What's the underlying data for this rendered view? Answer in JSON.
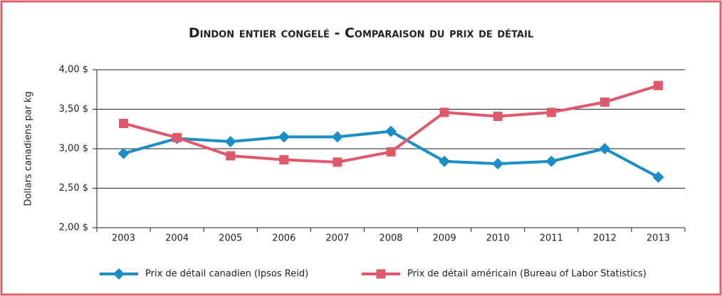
{
  "chart_data": {
    "type": "line",
    "title": "Dindon entier congelé - Comparaison du prix de détail",
    "y_label": "Dollars canadiens par kg",
    "categories": [
      "2003",
      "2004",
      "2005",
      "2006",
      "2007",
      "2008",
      "2009",
      "2010",
      "2011",
      "2012",
      "2013"
    ],
    "series": [
      {
        "name": "Prix de détail canadien (Ipsos Reid)",
        "color": "#1b8ec8",
        "marker": "diamond",
        "values": [
          2.94,
          3.13,
          3.09,
          3.15,
          3.15,
          3.22,
          2.84,
          2.81,
          2.84,
          3.0,
          2.64
        ]
      },
      {
        "name": "Prix de détail américain (Bureau of Labor Statistics)",
        "color": "#e0596b",
        "marker": "square",
        "values": [
          3.32,
          3.14,
          2.91,
          2.86,
          2.83,
          2.96,
          3.46,
          3.41,
          3.46,
          3.59,
          3.8
        ]
      }
    ],
    "ylim": [
      2,
      4
    ],
    "yticks": [
      {
        "value": 2,
        "label": "2,00 $"
      },
      {
        "value": 2.5,
        "label": "2,50 $"
      },
      {
        "value": 3,
        "label": "3,00 $"
      },
      {
        "value": 3.5,
        "label": "3,50 $"
      },
      {
        "value": 4,
        "label": "4,00 $"
      }
    ],
    "grid": true,
    "legend": "bottom"
  }
}
